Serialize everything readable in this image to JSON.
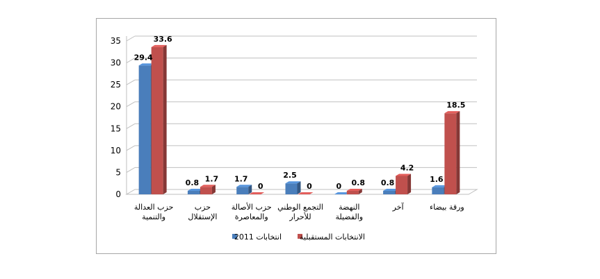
{
  "chart_data": {
    "type": "bar",
    "categories": [
      [
        "حزب العدالة",
        "والتنمية"
      ],
      [
        "حزب",
        "الإستقلال"
      ],
      [
        "حزب الأصالة",
        "والمعاصرة"
      ],
      [
        "التجمع الوطني",
        "للأحرار"
      ],
      [
        "النهضة",
        "والفضيلة"
      ],
      [
        "آخر"
      ],
      [
        "ورقة بيضاء"
      ]
    ],
    "series": [
      {
        "name": "انتخابات 2011",
        "color": "#4a7ebb",
        "values": [
          29.4,
          0.8,
          1.7,
          2.5,
          0,
          0.8,
          1.6
        ]
      },
      {
        "name": "الانتخابات المستقبلية",
        "color": "#c0504d",
        "values": [
          33.6,
          1.7,
          0,
          0,
          0.8,
          4.2,
          18.5
        ]
      }
    ],
    "ylim": [
      0,
      35
    ],
    "yticks": [
      0,
      5,
      10,
      15,
      20,
      25,
      30,
      35
    ],
    "grid": true,
    "legend": "bottom"
  }
}
